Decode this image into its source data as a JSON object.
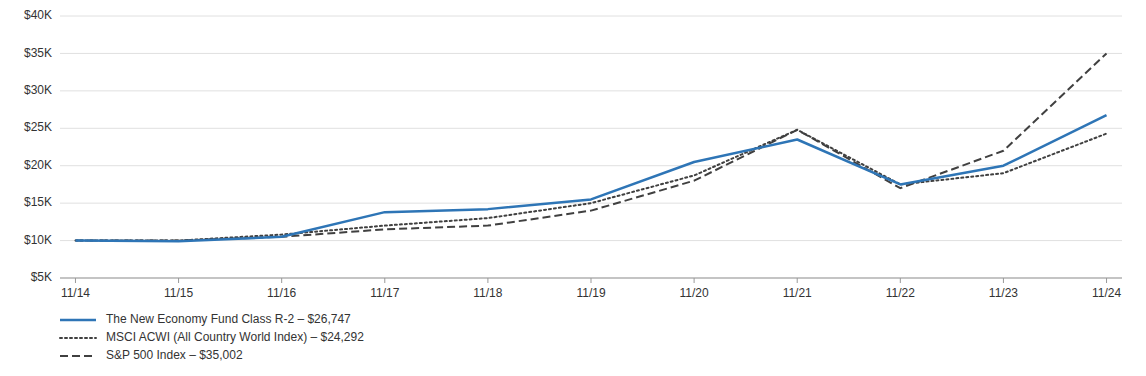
{
  "chart_data": {
    "type": "line",
    "categories": [
      "11/14",
      "11/15",
      "11/16",
      "11/17",
      "11/18",
      "11/19",
      "11/20",
      "11/21",
      "11/22",
      "11/23",
      "11/24"
    ],
    "series": [
      {
        "name": "The New Economy Fund Class R-2 – $26,747",
        "color": "#2e75b6",
        "line_style": "solid",
        "values": [
          10000,
          9900,
          10500,
          13800,
          14200,
          15500,
          20500,
          23500,
          17500,
          20000,
          26747
        ]
      },
      {
        "name": "MSCI ACWI (All Country World Index) – $24,292",
        "color": "#404040",
        "line_style": "dotted",
        "values": [
          10000,
          10000,
          10800,
          12000,
          13000,
          15000,
          18700,
          24800,
          17500,
          19000,
          24292
        ]
      },
      {
        "name": "S&P 500 Index – $35,002",
        "color": "#404040",
        "line_style": "dashed",
        "values": [
          10000,
          10000,
          10500,
          11500,
          12000,
          14000,
          18000,
          24800,
          17000,
          22000,
          35002
        ]
      }
    ],
    "ylim": [
      5000,
      40000
    ],
    "yticks": [
      {
        "value": 5000,
        "label": "$5K"
      },
      {
        "value": 10000,
        "label": "$10K"
      },
      {
        "value": 15000,
        "label": "$15K"
      },
      {
        "value": 20000,
        "label": "$20K"
      },
      {
        "value": 25000,
        "label": "$25K"
      },
      {
        "value": 30000,
        "label": "$30K"
      },
      {
        "value": 35000,
        "label": "$35K"
      },
      {
        "value": 40000,
        "label": "$40K"
      }
    ],
    "grid": true,
    "legend": "bottom"
  }
}
